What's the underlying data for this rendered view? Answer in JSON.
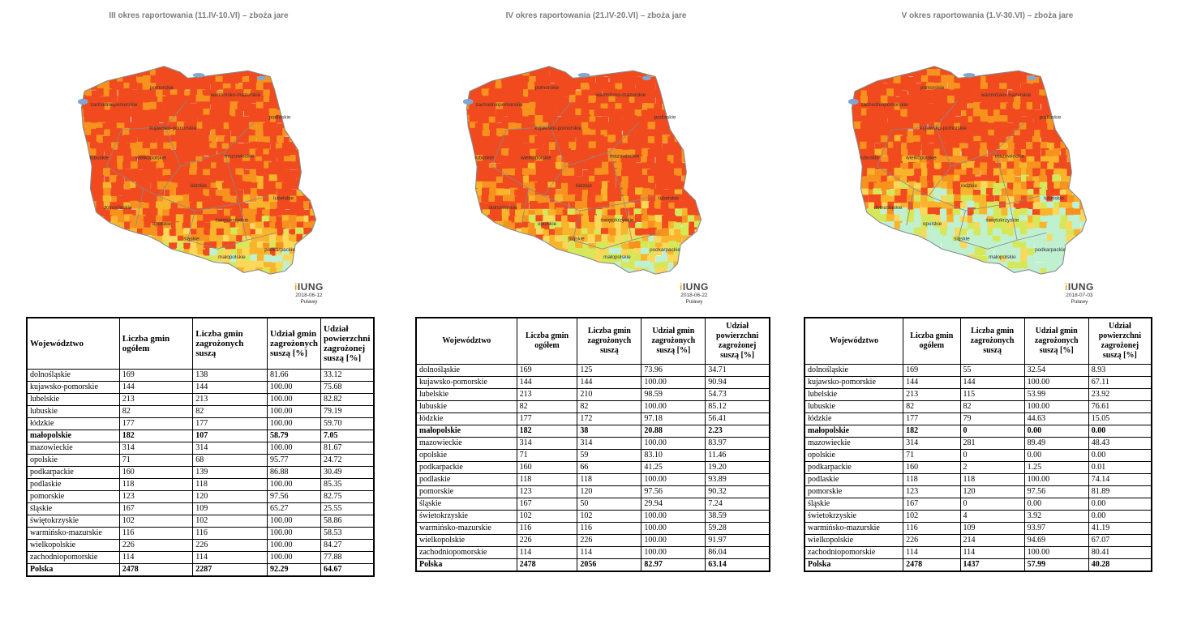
{
  "colors": {
    "severe": "#f04a1e",
    "high": "#f7921e",
    "medium": "#f9b42b",
    "low": "#fbd75a",
    "minimal": "#d6e85a",
    "none": "#bff0cf",
    "water": "#7fa7d4",
    "title": "#7d7d7d"
  },
  "headers": {
    "wojewodztwo": "Województwo",
    "liczba_gmin": "Liczba gmin ogółem",
    "liczba_zagrozonych": "Liczba gmin zagrożonych suszą",
    "udzial_gmin": "Udział gmin zagrożonych suszą [%]",
    "udzial_powierzchni": "Udział powierzchni zagrożonej suszą [%]"
  },
  "logo": {
    "name": "IUNG",
    "place": "Puławy"
  },
  "map_labels": [
    "pomorskie",
    "warmińsko-mazurskie",
    "zachodniopomorskie",
    "kujawsko-pomorskie",
    "podlaskie",
    "wielkopolskie",
    "mazowieckie",
    "lubuskie",
    "łódzkie",
    "lubelskie",
    "dolnośląskie",
    "świętokrzyskie",
    "opolskie",
    "śląskie",
    "podkarpackie",
    "małopolskie"
  ],
  "panels": [
    {
      "title": "III okres raportowania (11.IV-10.VI) – zboża jare",
      "date": "2018-06-12",
      "rows": [
        [
          "dolnośląskie",
          "169",
          "138",
          "81.66",
          "33.12"
        ],
        [
          "kujawsko-pomorskie",
          "144",
          "144",
          "100.00",
          "75.68"
        ],
        [
          "lubelskie",
          "213",
          "213",
          "100.00",
          "82.82"
        ],
        [
          "lubuskie",
          "82",
          "82",
          "100.00",
          "79.19"
        ],
        [
          "łódzkie",
          "177",
          "177",
          "100.00",
          "59.70"
        ],
        [
          "małopolskie",
          "182",
          "107",
          "58.79",
          "7.05"
        ],
        [
          "mazowieckie",
          "314",
          "314",
          "100.00",
          "81.67"
        ],
        [
          "opolskie",
          "71",
          "68",
          "95.77",
          "24.72"
        ],
        [
          "podkarpackie",
          "160",
          "139",
          "86.88",
          "30.49"
        ],
        [
          "podlaskie",
          "118",
          "118",
          "100.00",
          "85.35"
        ],
        [
          "pomorskie",
          "123",
          "120",
          "97.56",
          "82.75"
        ],
        [
          "śląskie",
          "167",
          "109",
          "65.27",
          "25.55"
        ],
        [
          "świętokrzyskie",
          "102",
          "102",
          "100.00",
          "58.86"
        ],
        [
          "warmińsko-mazurskie",
          "116",
          "116",
          "100.00",
          "58.53"
        ],
        [
          "wielkopolskie",
          "226",
          "226",
          "100.00",
          "84.27"
        ],
        [
          "zachodniopomorskie",
          "114",
          "114",
          "100.00",
          "77.88"
        ]
      ],
      "total": [
        "Polska",
        "2478",
        "2287",
        "92.29",
        "64.67"
      ]
    },
    {
      "title": "IV okres raportowania (21.IV-20.VI) – zboża jare",
      "date": "2018-06-22",
      "rows": [
        [
          "dolnośląskie",
          "169",
          "125",
          "73.96",
          "34.71"
        ],
        [
          "kujawsko-pomorskie",
          "144",
          "144",
          "100.00",
          "90.94"
        ],
        [
          "lubelskie",
          "213",
          "210",
          "98.59",
          "54.73"
        ],
        [
          "lubuskie",
          "82",
          "82",
          "100.00",
          "85.12"
        ],
        [
          "łódzkie",
          "177",
          "172",
          "97.18",
          "56.41"
        ],
        [
          "małopolskie",
          "182",
          "38",
          "20.88",
          "2.23"
        ],
        [
          "mazowieckie",
          "314",
          "314",
          "100.00",
          "83.97"
        ],
        [
          "opolskie",
          "71",
          "59",
          "83.10",
          "11.46"
        ],
        [
          "podkarpackie",
          "160",
          "66",
          "41.25",
          "19.20"
        ],
        [
          "podlaskie",
          "118",
          "118",
          "100.00",
          "93.89"
        ],
        [
          "pomorskie",
          "123",
          "120",
          "97.56",
          "90.32"
        ],
        [
          "śląskie",
          "167",
          "50",
          "29.94",
          "7.24"
        ],
        [
          "świetokrzyskie",
          "102",
          "102",
          "100.00",
          "38.59"
        ],
        [
          "warmińsko-mazurskie",
          "116",
          "116",
          "100.00",
          "59.28"
        ],
        [
          "wielkopolskie",
          "226",
          "226",
          "100.00",
          "91.97"
        ],
        [
          "zachodniopomorskie",
          "114",
          "114",
          "100.00",
          "86.04"
        ]
      ],
      "total": [
        "Polska",
        "2478",
        "2056",
        "82.97",
        "63.14"
      ]
    },
    {
      "title": "V okres raportowania (1.V-30.VI) – zboża jare",
      "date": "2018-07-03",
      "rows": [
        [
          "dolnośląskie",
          "169",
          "55",
          "32.54",
          "8.93"
        ],
        [
          "kujawsko-pomorskie",
          "144",
          "144",
          "100.00",
          "67.11"
        ],
        [
          "lubelskie",
          "213",
          "115",
          "53.99",
          "23.92"
        ],
        [
          "lubuskie",
          "82",
          "82",
          "100.00",
          "76.61"
        ],
        [
          "łódzkie",
          "177",
          "79",
          "44.63",
          "15.05"
        ],
        [
          "małopolskie",
          "182",
          "0",
          "0.00",
          "0.00"
        ],
        [
          "mazowieckie",
          "314",
          "281",
          "89.49",
          "48.43"
        ],
        [
          "opolskie",
          "71",
          "0",
          "0.00",
          "0.00"
        ],
        [
          "podkarpackie",
          "160",
          "2",
          "1.25",
          "0.01"
        ],
        [
          "podlaskie",
          "118",
          "118",
          "100.00",
          "74.14"
        ],
        [
          "pomorskie",
          "123",
          "120",
          "97.56",
          "81.89"
        ],
        [
          "śląskie",
          "167",
          "0",
          "0.00",
          "0.00"
        ],
        [
          "świetokrzyskie",
          "102",
          "4",
          "3.92",
          "0.00"
        ],
        [
          "warmińsko-mazurskie",
          "116",
          "109",
          "93.97",
          "41.19"
        ],
        [
          "wielkopolskie",
          "226",
          "214",
          "94.69",
          "67.07"
        ],
        [
          "zachodniopomorskie",
          "114",
          "114",
          "100.00",
          "80.41"
        ]
      ],
      "total": [
        "Polska",
        "2478",
        "1437",
        "57.99",
        "40.28"
      ]
    }
  ]
}
